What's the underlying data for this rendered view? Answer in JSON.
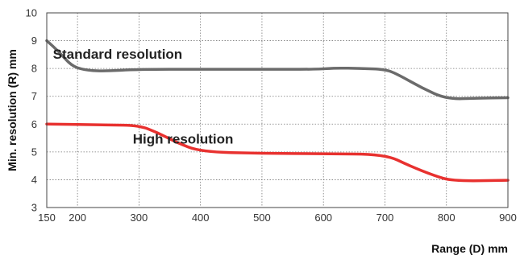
{
  "chart_data": {
    "type": "line",
    "title": "",
    "xlabel": "Range (D) mm",
    "ylabel": "Min. resolution (R) mm",
    "xlim": [
      150,
      900
    ],
    "ylim": [
      3,
      10
    ],
    "xticks": [
      150,
      200,
      300,
      400,
      500,
      600,
      700,
      800,
      900
    ],
    "yticks": [
      3,
      4,
      5,
      6,
      7,
      8,
      9,
      10
    ],
    "grid": true,
    "series": [
      {
        "name": "Standard resolution",
        "color": "#6b6b6b",
        "points": [
          [
            150,
            9.0
          ],
          [
            170,
            8.6
          ],
          [
            190,
            8.1
          ],
          [
            210,
            7.95
          ],
          [
            240,
            7.9
          ],
          [
            300,
            7.97
          ],
          [
            400,
            7.97
          ],
          [
            500,
            7.97
          ],
          [
            590,
            7.97
          ],
          [
            620,
            8.02
          ],
          [
            660,
            8.0
          ],
          [
            700,
            7.97
          ],
          [
            720,
            7.8
          ],
          [
            760,
            7.3
          ],
          [
            800,
            6.9
          ],
          [
            850,
            6.93
          ],
          [
            900,
            6.95
          ]
        ]
      },
      {
        "name": "High resolution",
        "color": "#e8312f",
        "points": [
          [
            150,
            6.0
          ],
          [
            250,
            5.97
          ],
          [
            300,
            5.95
          ],
          [
            330,
            5.7
          ],
          [
            360,
            5.35
          ],
          [
            400,
            5.0
          ],
          [
            500,
            4.95
          ],
          [
            600,
            4.93
          ],
          [
            700,
            4.92
          ],
          [
            740,
            4.5
          ],
          [
            780,
            4.15
          ],
          [
            810,
            3.95
          ],
          [
            900,
            3.98
          ]
        ]
      }
    ],
    "annotations": [
      {
        "text": "Standard resolution",
        "x": 160,
        "y": 8.35
      },
      {
        "text": "High resolution",
        "x": 290,
        "y": 5.3
      }
    ]
  }
}
